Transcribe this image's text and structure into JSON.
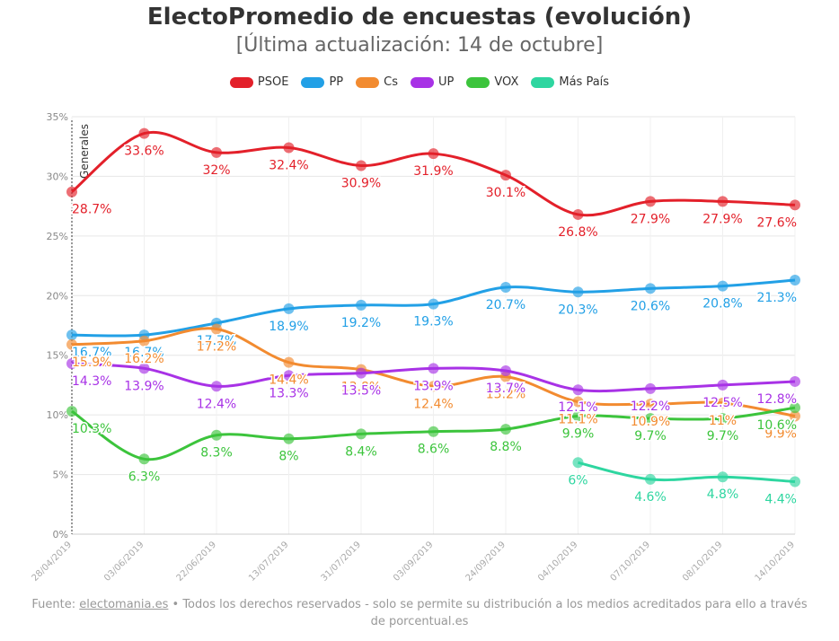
{
  "header": {
    "title": "ElectoPromedio de encuestas (evolución)",
    "subtitle": "[Última actualización: 14 de octubre]"
  },
  "footer": {
    "prefix": "Fuente: ",
    "link": "electomania.es",
    "suffix": " • Todos los derechos reservados - solo se permite su distribución a los medios acreditados para ello a través de porcentual.es"
  },
  "chart_data": {
    "type": "line",
    "categories": [
      "28/04/2019",
      "03/06/2019",
      "22/06/2019",
      "13/07/2019",
      "31/07/2019",
      "03/09/2019",
      "24/09/2019",
      "04/10/2019",
      "07/10/2019",
      "08/10/2019",
      "14/10/2019"
    ],
    "ylim": [
      0,
      35
    ],
    "yticks": [
      "0%",
      "5%",
      "10%",
      "15%",
      "20%",
      "25%",
      "30%",
      "35%"
    ],
    "grid": true,
    "legend_position": "top-center",
    "annotation": "Generales",
    "series": [
      {
        "name": "PSOE",
        "color": "#e3202a",
        "values": [
          28.7,
          33.6,
          32,
          32.4,
          30.9,
          31.9,
          30.1,
          26.8,
          27.9,
          27.9,
          27.6
        ],
        "labels": [
          "28.7%",
          "33.6%",
          "32%",
          "32.4%",
          "30.9%",
          "31.9%",
          "30.1%",
          "26.8%",
          "27.9%",
          "27.9%",
          "27.6%"
        ]
      },
      {
        "name": "PP",
        "color": "#22a0e6",
        "values": [
          16.7,
          16.7,
          17.7,
          18.9,
          19.2,
          19.3,
          20.7,
          20.3,
          20.6,
          20.8,
          21.3
        ],
        "labels": [
          "16.7%",
          "16.7%",
          "17.7%",
          "18.9%",
          "19.2%",
          "19.3%",
          "20.7%",
          "20.3%",
          "20.6%",
          "20.8%",
          "21.3%"
        ]
      },
      {
        "name": "Cs",
        "color": "#f28b30",
        "values": [
          15.9,
          16.2,
          17.2,
          14.4,
          13.8,
          12.4,
          13.2,
          11.1,
          10.9,
          11,
          9.9
        ],
        "labels": [
          "15.9%",
          "16.2%",
          "17.2%",
          "14.4%",
          "13.8%",
          "12.4%",
          "13.2%",
          "11.1%",
          "10.9%",
          "11%",
          "9.9%"
        ]
      },
      {
        "name": "UP",
        "color": "#a832e6",
        "values": [
          14.3,
          13.9,
          12.4,
          13.3,
          13.5,
          13.9,
          13.7,
          12.1,
          12.2,
          12.5,
          12.8
        ],
        "labels": [
          "14.3%",
          "13.9%",
          "12.4%",
          "13.3%",
          "13.5%",
          "13.9%",
          "13.7%",
          "12.1%",
          "12.2%",
          "12.5%",
          "12.8%"
        ]
      },
      {
        "name": "VOX",
        "color": "#3cc43c",
        "values": [
          10.3,
          6.3,
          8.3,
          8,
          8.4,
          8.6,
          8.8,
          9.9,
          9.7,
          9.7,
          10.6
        ],
        "labels": [
          "10.3%",
          "6.3%",
          "8.3%",
          "8%",
          "8.4%",
          "8.6%",
          "8.8%",
          "9.9%",
          "9.7%",
          "9.7%",
          "10.6%"
        ]
      },
      {
        "name": "Más País",
        "color": "#2ed6a0",
        "values": [
          null,
          null,
          null,
          null,
          null,
          null,
          null,
          6,
          4.6,
          4.8,
          4.4
        ],
        "labels": [
          null,
          null,
          null,
          null,
          null,
          null,
          null,
          "6%",
          "4.6%",
          "4.8%",
          "4.4%"
        ]
      }
    ]
  }
}
